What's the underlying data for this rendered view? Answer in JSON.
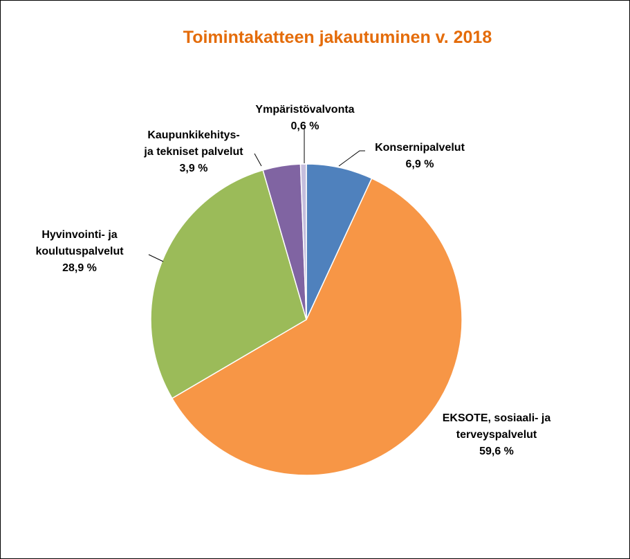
{
  "chart_data": {
    "type": "pie",
    "title": "Toimintakatteen jakautuminen v. 2018",
    "title_color": "#E46C0A",
    "slices": [
      {
        "lines": [
          "Konsernipalvelut"
        ],
        "value": 6.9,
        "value_label": "6,9 %",
        "color": "#4F81BD"
      },
      {
        "lines": [
          "EKSOTE, sosiaali- ja",
          "terveyspalvelut"
        ],
        "value": 59.6,
        "value_label": "59,6 %",
        "color": "#F79646"
      },
      {
        "lines": [
          "Hyvinvointi- ja",
          "koulutuspalvelut"
        ],
        "value": 28.9,
        "value_label": "28,9 %",
        "color": "#9BBB59"
      },
      {
        "lines": [
          "Kaupunkikehitys-",
          "ja tekniset palvelut"
        ],
        "value": 3.9,
        "value_label": "3,9 %",
        "color": "#8064A2"
      },
      {
        "lines": [
          "Ympäristövalvonta"
        ],
        "value": 0.6,
        "value_label": "0,6 %",
        "color": "#C5BEDD"
      }
    ],
    "start": "12 o'clock",
    "direction": "clockwise"
  }
}
